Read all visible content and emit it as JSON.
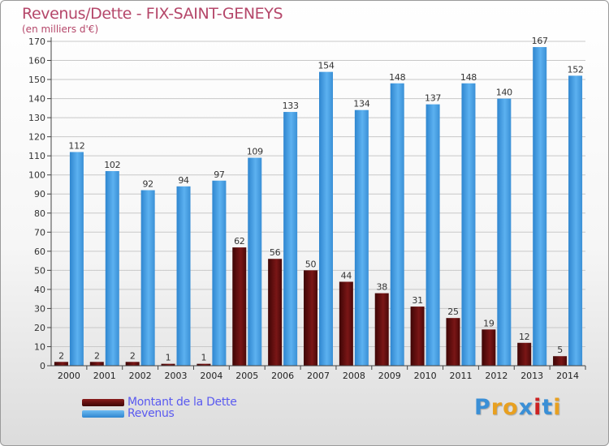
{
  "header": {
    "title": "Revenus/Dette - FIX-SAINT-GENEYS",
    "subtitle": "(en milliers d'€)"
  },
  "chart_data": {
    "type": "bar",
    "categories": [
      "2000",
      "2001",
      "2002",
      "2003",
      "2004",
      "2005",
      "2006",
      "2007",
      "2008",
      "2009",
      "2010",
      "2011",
      "2012",
      "2013",
      "2014"
    ],
    "series": [
      {
        "name": "Montant de la Dette",
        "color": "#6b0f0f",
        "values": [
          2,
          2,
          2,
          1,
          1,
          62,
          56,
          50,
          44,
          38,
          31,
          25,
          19,
          12,
          5
        ]
      },
      {
        "name": "Revenus",
        "color": "#4aa3e8",
        "values": [
          112,
          102,
          92,
          94,
          97,
          109,
          133,
          154,
          134,
          148,
          137,
          148,
          140,
          167,
          152
        ]
      }
    ],
    "ylim": [
      0,
      170
    ],
    "yticks": [
      0,
      10,
      20,
      30,
      40,
      50,
      60,
      70,
      80,
      90,
      100,
      110,
      120,
      130,
      140,
      150,
      160,
      170
    ],
    "grid": true,
    "legend": "bottom-left"
  },
  "legend": {
    "items": [
      {
        "label": "Montant de la Dette",
        "color": "#6b0f0f"
      },
      {
        "label": "Revenus",
        "color": "#4aa3e8"
      }
    ]
  },
  "logo": {
    "text": "Proxiti"
  }
}
